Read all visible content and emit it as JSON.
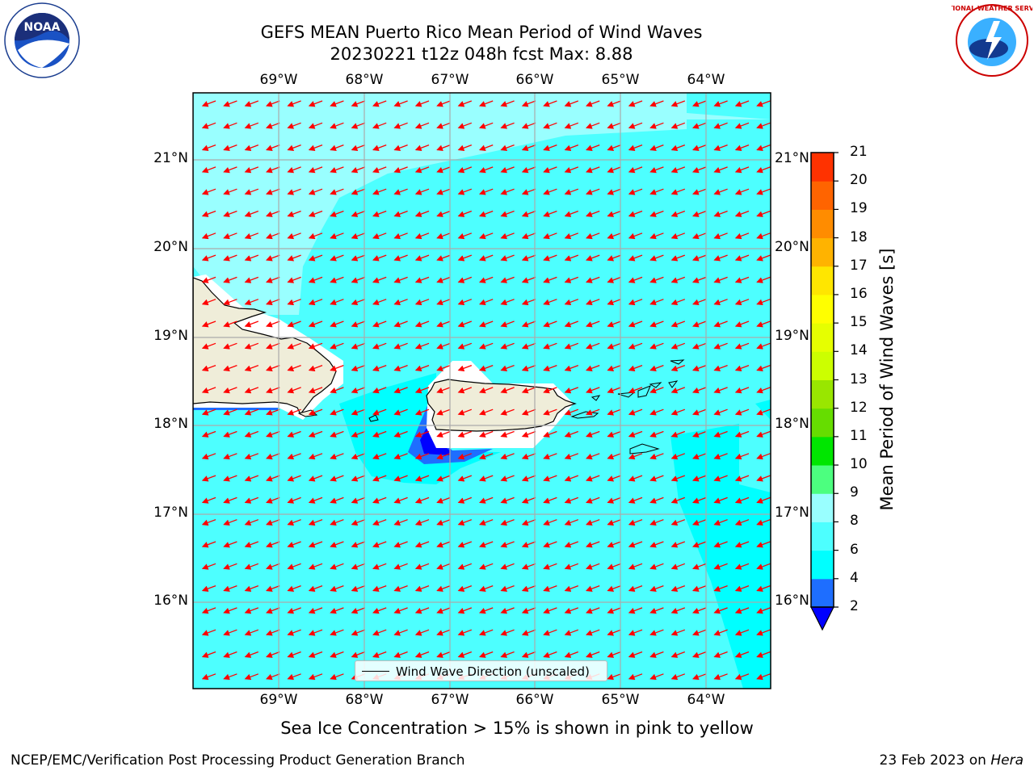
{
  "title": {
    "line1": "GEFS MEAN Puerto Rico Mean Period of Wind Waves",
    "line2": "20230221 t12z 048h fcst   Max: 8.88"
  },
  "logos": {
    "left": {
      "text": "NOAA",
      "icon": "noaa-logo"
    },
    "right": {
      "text": "NATIONAL WEATHER SERVICE",
      "icon": "nws-logo"
    }
  },
  "map": {
    "lon_labels": [
      "69°W",
      "68°W",
      "67°W",
      "66°W",
      "65°W",
      "64°W"
    ],
    "lat_labels": [
      "21°N",
      "20°N",
      "19°N",
      "18°N",
      "17°N",
      "16°N"
    ],
    "legend_label": "Wind Wave Direction (unscaled)"
  },
  "chart_data": {
    "type": "heatmap",
    "title": "GEFS MEAN Puerto Rico Mean Period of Wind Waves",
    "subtitle": "20230221 t12z 048h fcst   Max: 8.88",
    "lon_ticks": [
      -69,
      -68,
      -67,
      -66,
      -65,
      -64
    ],
    "lat_ticks": [
      21,
      20,
      19,
      18,
      17,
      16
    ],
    "colorbar": {
      "label": "Mean Period of Wind Waves [s]",
      "ticks": [
        2,
        4,
        6,
        8,
        9,
        10,
        11,
        12,
        13,
        14,
        15,
        16,
        17,
        18,
        19,
        20,
        21
      ],
      "colors": [
        "#1e6eff",
        "#00ffff",
        "#4dffff",
        "#99ffff",
        "#4cff7f",
        "#00e600",
        "#66dd00",
        "#99e600",
        "#ccff00",
        "#e6ff00",
        "#ffff00",
        "#ffe600",
        "#ffb300",
        "#ff8c00",
        "#ff6400",
        "#ff3200",
        "#ff0000"
      ],
      "below_min_color": "#0000ff"
    },
    "field_values_observed": {
      "max": 8.88,
      "dominant_band": [
        6,
        8
      ]
    },
    "vector_direction": "from east-northeast (arrows point west-southwest)",
    "legend": "Wind Wave Direction (unscaled)"
  },
  "note": "Sea Ice Concentration > 15% is shown in pink to yellow",
  "footer": {
    "left": "NCEP/EMC/Verification Post Processing Product Generation Branch",
    "right_prefix": "23 Feb 2023 on ",
    "right_italic": "Hera"
  }
}
